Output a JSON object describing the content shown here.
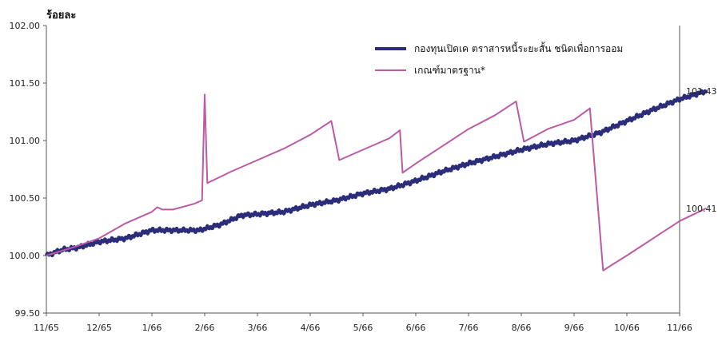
{
  "chart_data": {
    "type": "line",
    "ylabel": "ร้อยละ",
    "ylim": [
      99.5,
      102.0
    ],
    "yticks": [
      "99.50",
      "100.00",
      "100.50",
      "101.00",
      "101.50",
      "102.00"
    ],
    "xticks": [
      "11/65",
      "12/65",
      "1/66",
      "2/66",
      "3/66",
      "4/66",
      "5/66",
      "6/66",
      "7/66",
      "8/66",
      "9/66",
      "10/66",
      "11/66"
    ],
    "grid": false,
    "legend": "top-right",
    "series": [
      {
        "name": "กองทุนเปิดเค ตราสารหนี้ระยะสั้น ชนิดเพื่อการออม",
        "color": "#2b2d7a",
        "end_label": "101.43",
        "points": [
          [
            0,
            100.0
          ],
          [
            0.3,
            100.05
          ],
          [
            0.6,
            100.07
          ],
          [
            1.0,
            100.12
          ],
          [
            1.5,
            100.15
          ],
          [
            2.0,
            100.22
          ],
          [
            2.5,
            100.22
          ],
          [
            2.9,
            100.22
          ],
          [
            3.3,
            100.27
          ],
          [
            3.7,
            100.35
          ],
          [
            4.0,
            100.36
          ],
          [
            4.5,
            100.38
          ],
          [
            5.0,
            100.44
          ],
          [
            5.5,
            100.48
          ],
          [
            6.0,
            100.54
          ],
          [
            6.5,
            100.58
          ],
          [
            7.0,
            100.65
          ],
          [
            7.5,
            100.73
          ],
          [
            8.0,
            100.8
          ],
          [
            8.5,
            100.86
          ],
          [
            9.0,
            100.92
          ],
          [
            9.5,
            100.97
          ],
          [
            10.0,
            101.0
          ],
          [
            10.5,
            101.07
          ],
          [
            11.0,
            101.17
          ],
          [
            11.5,
            101.27
          ],
          [
            12.0,
            101.36
          ],
          [
            12.5,
            101.43
          ]
        ]
      },
      {
        "name": "เกณฑ์มาตรฐาน*",
        "color": "#bb5aa6",
        "end_label": "100.41",
        "points": [
          [
            0,
            100.0
          ],
          [
            0.5,
            100.07
          ],
          [
            1.0,
            100.15
          ],
          [
            1.5,
            100.28
          ],
          [
            2.0,
            100.38
          ],
          [
            2.1,
            100.42
          ],
          [
            2.2,
            100.4
          ],
          [
            2.4,
            100.4
          ],
          [
            2.8,
            100.45
          ],
          [
            2.95,
            100.48
          ],
          [
            3.0,
            101.4
          ],
          [
            3.05,
            100.63
          ],
          [
            3.5,
            100.73
          ],
          [
            4.0,
            100.83
          ],
          [
            4.5,
            100.93
          ],
          [
            5.0,
            101.05
          ],
          [
            5.4,
            101.17
          ],
          [
            5.55,
            100.83
          ],
          [
            6.0,
            100.92
          ],
          [
            6.5,
            101.02
          ],
          [
            6.7,
            101.09
          ],
          [
            6.75,
            100.72
          ],
          [
            7.0,
            100.8
          ],
          [
            7.5,
            100.95
          ],
          [
            8.0,
            101.1
          ],
          [
            8.5,
            101.22
          ],
          [
            8.9,
            101.34
          ],
          [
            9.05,
            100.99
          ],
          [
            9.3,
            101.05
          ],
          [
            9.5,
            101.1
          ],
          [
            10.0,
            101.18
          ],
          [
            10.3,
            101.28
          ],
          [
            10.55,
            99.87
          ],
          [
            11.0,
            100.0
          ],
          [
            11.5,
            100.15
          ],
          [
            12.0,
            100.3
          ],
          [
            12.5,
            100.41
          ]
        ]
      }
    ]
  }
}
